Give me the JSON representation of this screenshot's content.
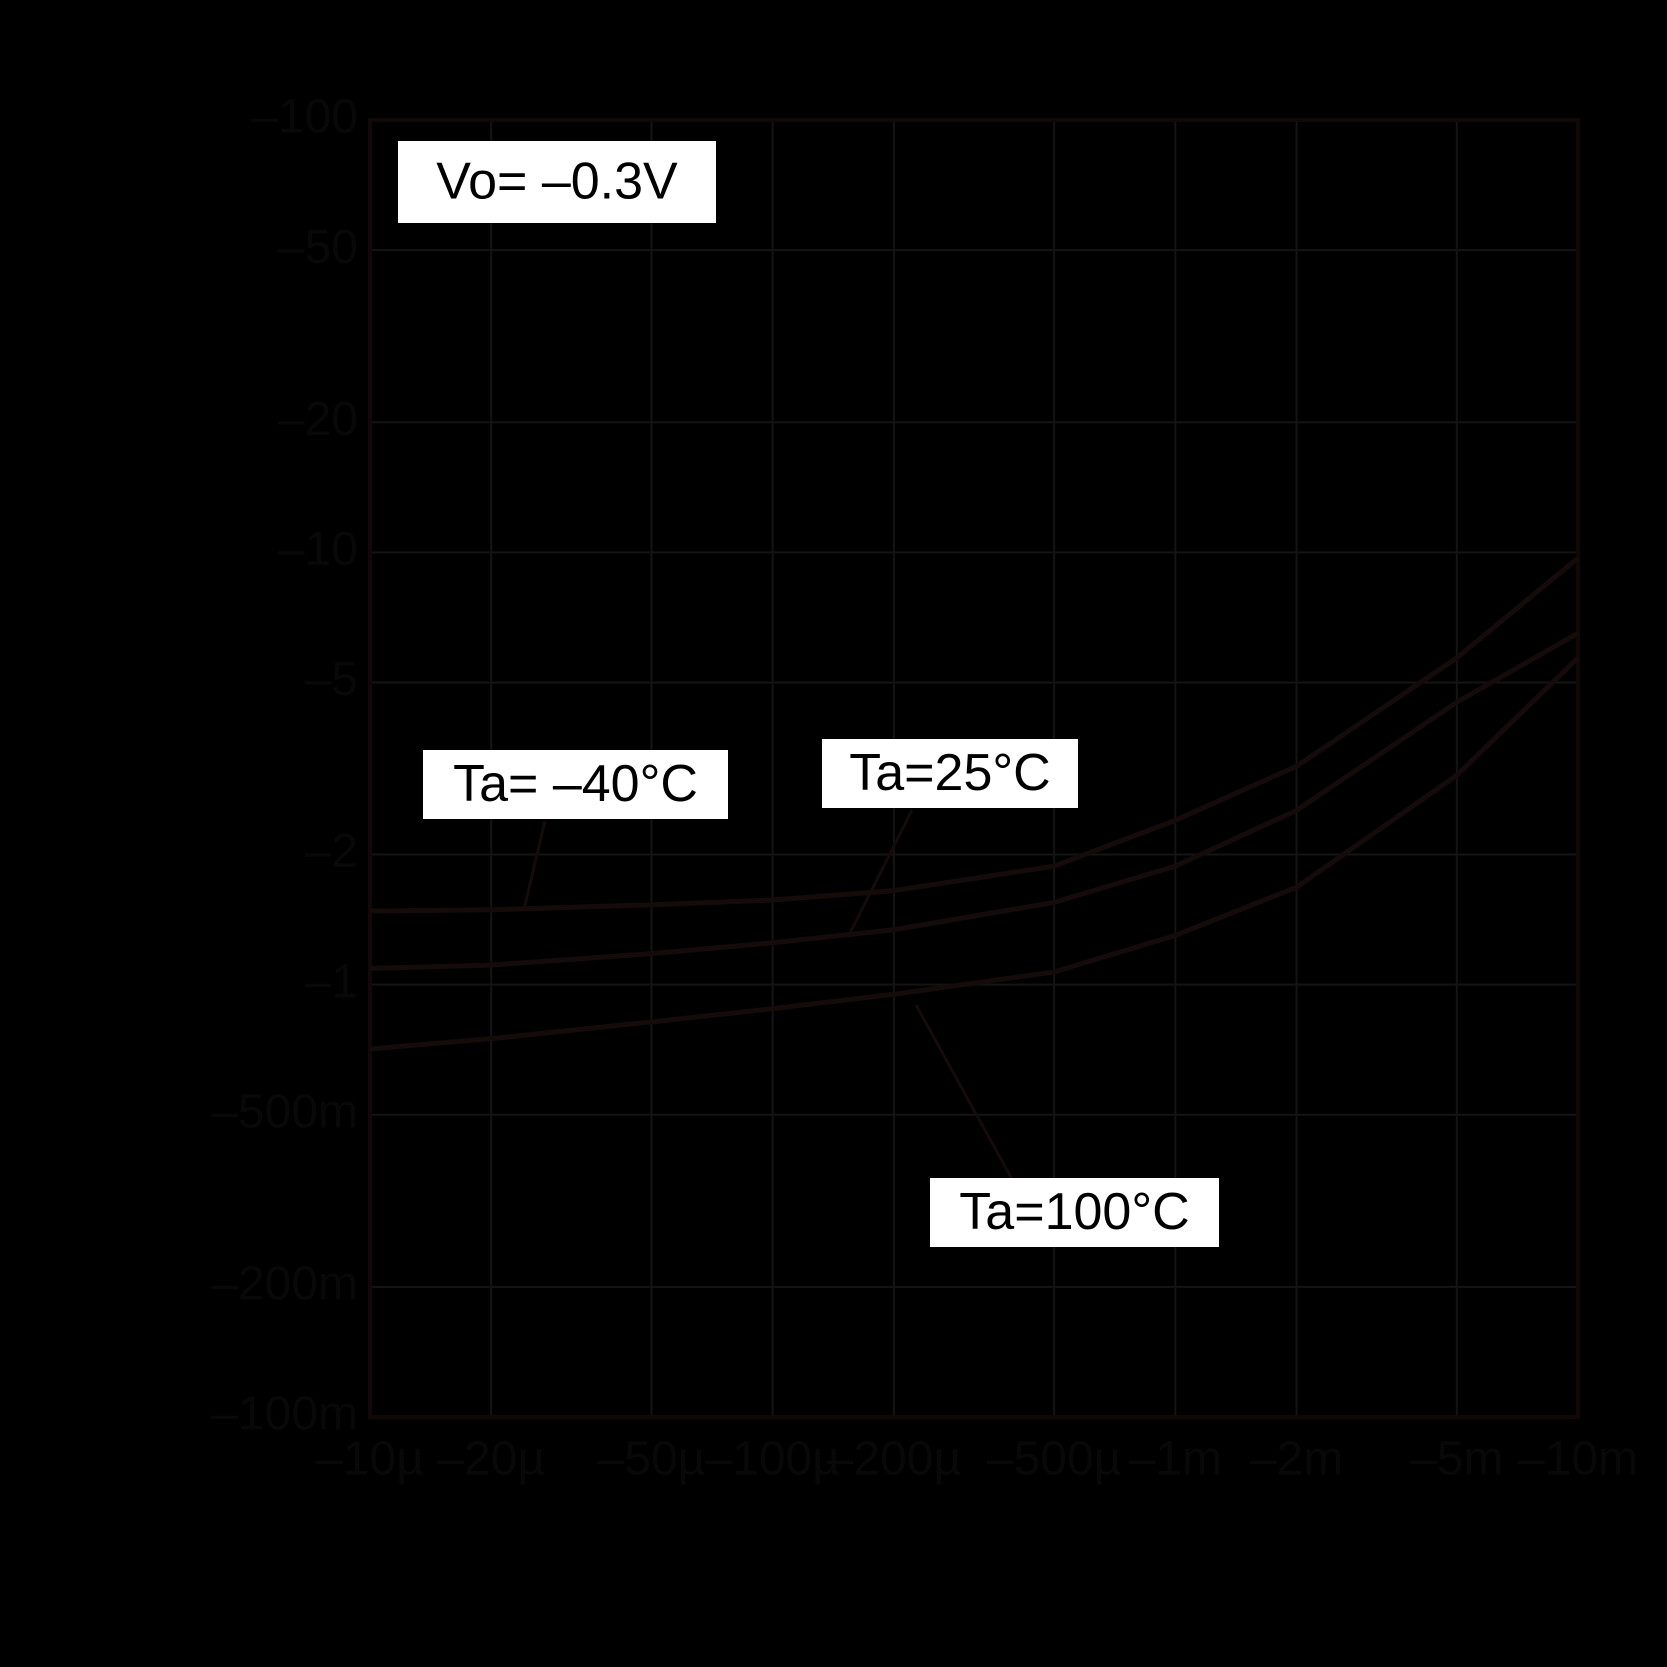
{
  "chart_data": {
    "type": "line",
    "annotation": "Vo= –0.3V",
    "x": [
      -1e-05,
      -2e-05,
      -5e-05,
      -0.0001,
      -0.0002,
      -0.0005,
      -0.001,
      -0.002,
      -0.005,
      -0.01
    ],
    "series": [
      {
        "name": "Ta= –40°C",
        "color": "#160b0b",
        "values": [
          -1.48,
          -1.49,
          -1.53,
          -1.57,
          -1.65,
          -1.88,
          -2.4,
          -3.2,
          -5.7,
          -9.7
        ]
      },
      {
        "name": "Ta=25°C",
        "color": "#160b0b",
        "values": [
          -1.09,
          -1.11,
          -1.18,
          -1.25,
          -1.34,
          -1.55,
          -1.88,
          -2.53,
          -4.5,
          -6.5
        ]
      },
      {
        "name": "Ta=100°C",
        "color": "#160b0b",
        "values": [
          -0.71,
          -0.75,
          -0.82,
          -0.88,
          -0.95,
          -1.07,
          -1.3,
          -1.68,
          -3.05,
          -5.7
        ]
      }
    ],
    "xlim": [
      -1e-05,
      -0.01
    ],
    "ylim": [
      -0.1,
      -100
    ],
    "xscale": "log",
    "yscale": "log",
    "grid": true,
    "xticks": [
      {
        "value": -1e-05,
        "label": "–10µ"
      },
      {
        "value": -2e-05,
        "label": "–20µ"
      },
      {
        "value": -5e-05,
        "label": "–50µ"
      },
      {
        "value": -0.0001,
        "label": "–100µ"
      },
      {
        "value": -0.0002,
        "label": "–200µ"
      },
      {
        "value": -0.0005,
        "label": "–500µ"
      },
      {
        "value": -0.001,
        "label": "–1m"
      },
      {
        "value": -0.002,
        "label": "–2m"
      },
      {
        "value": -0.005,
        "label": "–5m"
      },
      {
        "value": -0.01,
        "label": "–10m"
      }
    ],
    "yticks": [
      {
        "value": -100,
        "label": "–100"
      },
      {
        "value": -50,
        "label": "–50"
      },
      {
        "value": -20,
        "label": "–20"
      },
      {
        "value": -10,
        "label": "–10"
      },
      {
        "value": -5,
        "label": "–5"
      },
      {
        "value": -2,
        "label": "–2"
      },
      {
        "value": -1,
        "label": "–1"
      },
      {
        "value": -0.5,
        "label": "–500m"
      },
      {
        "value": -0.2,
        "label": "–200m"
      },
      {
        "value": -0.1,
        "label": "–100m"
      }
    ]
  }
}
